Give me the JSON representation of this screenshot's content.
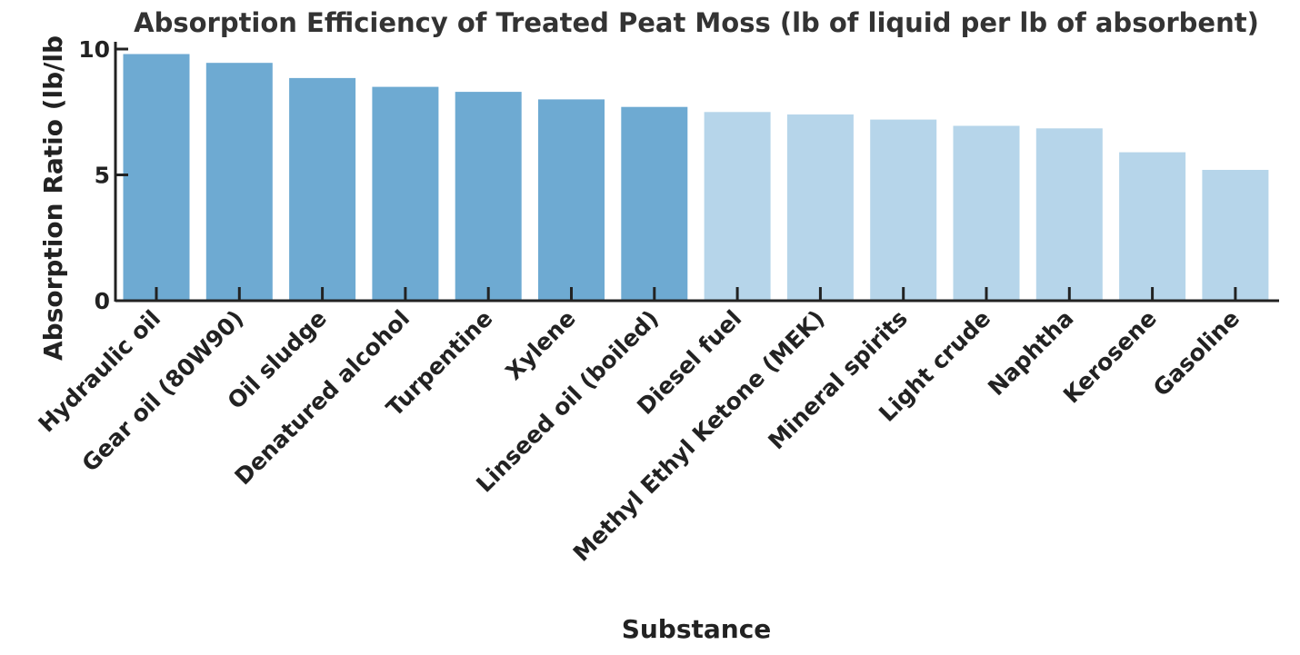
{
  "chart_data": {
    "type": "bar",
    "title": "Absorption Efficiency of Treated Peat Moss (lb of liquid per lb of absorbent)",
    "xlabel": "Substance",
    "ylabel": "Absorption Ratio (lb/lb",
    "ylim": [
      0,
      10
    ],
    "yticks": [
      "0",
      "5",
      "10"
    ],
    "grid": false,
    "categories": [
      "Hydraulic oil",
      "Gear oil (80W90)",
      "Oil sludge",
      "Denatured alcohol",
      "Turpentine",
      "Xylene",
      "Linseed oil (boiled)",
      "Diesel fuel",
      "Methyl Ethyl Ketone (MEK)",
      "Mineral spirits",
      "Light crude",
      "Naphtha",
      "Kerosene",
      "Gasoline"
    ],
    "values": [
      9.8,
      9.45,
      8.85,
      8.5,
      8.3,
      8.0,
      7.7,
      7.5,
      7.4,
      7.2,
      6.95,
      6.85,
      5.9,
      5.2
    ],
    "colors": [
      "#6eaad2",
      "#6eaad2",
      "#6eaad2",
      "#6eaad2",
      "#6eaad2",
      "#6eaad2",
      "#6eaad2",
      "#b6d5ea",
      "#b6d5ea",
      "#b6d5ea",
      "#b6d5ea",
      "#b6d5ea",
      "#b6d5ea",
      "#b6d5ea"
    ]
  }
}
